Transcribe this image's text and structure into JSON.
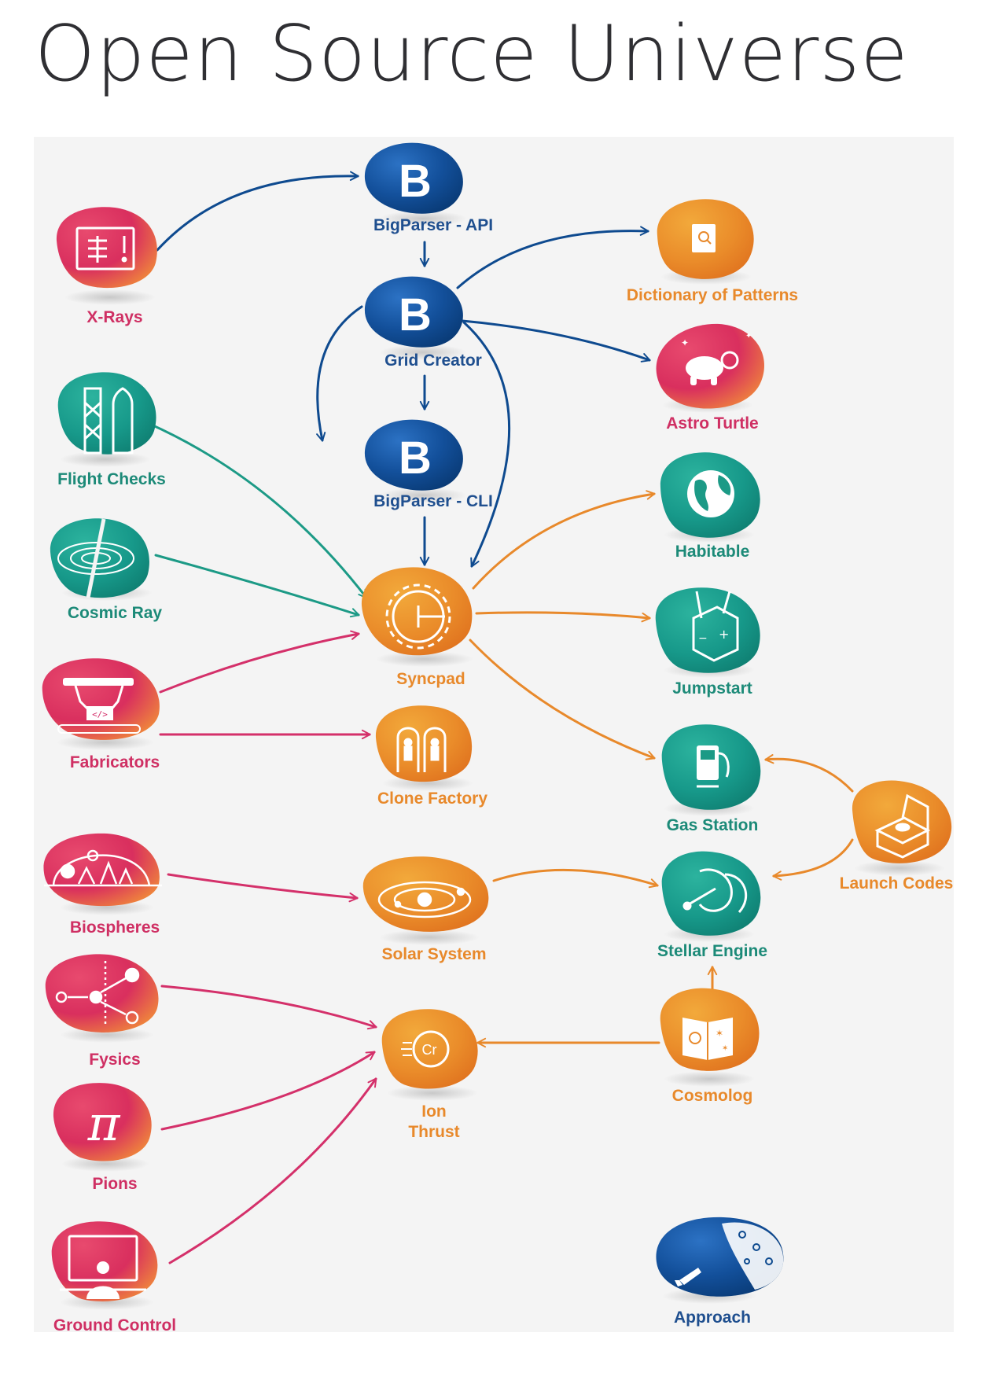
{
  "page": {
    "title": "Open Source Universe"
  },
  "colors": {
    "blue": "#0e4a8f",
    "orange": "#e8892b",
    "teal": "#1c9a86",
    "pink": "#d4306a",
    "blue_label": "#1f4f8f",
    "orange_label": "#e8892b",
    "teal_label": "#1c8a78",
    "pink_label": "#cf2f63"
  },
  "nodes": {
    "bigparser_api": {
      "label": "BigParser - API",
      "icon": "b-letter-icon",
      "glyph": "B"
    },
    "grid_creator": {
      "label": "Grid Creator",
      "icon": "b-letter-icon",
      "glyph": "B"
    },
    "bigparser_cli": {
      "label": "BigParser - CLI",
      "icon": "b-letter-icon",
      "glyph": "B"
    },
    "dictionary_of_patterns": {
      "label": "Dictionary of Patterns",
      "icon": "magnifier-document-icon"
    },
    "astro_turtle": {
      "label": "Astro Turtle",
      "icon": "turtle-astronaut-icon"
    },
    "habitable": {
      "label": "Habitable",
      "icon": "globe-icon"
    },
    "jumpstart": {
      "label": "Jumpstart",
      "icon": "battery-cables-icon"
    },
    "gas_station": {
      "label": "Gas Station",
      "icon": "fuel-pump-icon"
    },
    "launch_codes": {
      "label": "Launch Codes",
      "icon": "button-box-icon"
    },
    "stellar_engine": {
      "label": "Stellar Engine",
      "icon": "satellite-dish-icon"
    },
    "cosmolog": {
      "label": "Cosmolog",
      "icon": "galaxy-book-icon"
    },
    "approach": {
      "label": "Approach",
      "icon": "rocket-planet-icon"
    },
    "syncpad": {
      "label": "Syncpad",
      "icon": "gear-clock-icon"
    },
    "clone_factory": {
      "label": "Clone Factory",
      "icon": "clone-pods-icon"
    },
    "solar_system": {
      "label": "Solar System",
      "icon": "orbit-icon"
    },
    "ion_thrust": {
      "label_line1": "Ion",
      "label_line2": "Thrust",
      "icon": "chromium-ion-icon",
      "glyph": "Cr"
    },
    "x_rays": {
      "label": "X-Rays",
      "icon": "xray-board-icon"
    },
    "flight_checks": {
      "label": "Flight Checks",
      "icon": "launch-tower-icon"
    },
    "cosmic_ray": {
      "label": "Cosmic Ray",
      "icon": "spiral-ray-icon"
    },
    "fabricators": {
      "label": "Fabricators",
      "icon": "robot-arms-code-icon",
      "glyph": "</>"
    },
    "biospheres": {
      "label": "Biospheres",
      "icon": "dome-trees-icon"
    },
    "fysics": {
      "label": "Fysics",
      "icon": "particle-collision-icon"
    },
    "pions": {
      "label": "Pions",
      "icon": "pi-symbol-icon",
      "glyph": "π"
    },
    "ground_control": {
      "label": "Ground Control",
      "icon": "operator-monitor-icon"
    }
  }
}
